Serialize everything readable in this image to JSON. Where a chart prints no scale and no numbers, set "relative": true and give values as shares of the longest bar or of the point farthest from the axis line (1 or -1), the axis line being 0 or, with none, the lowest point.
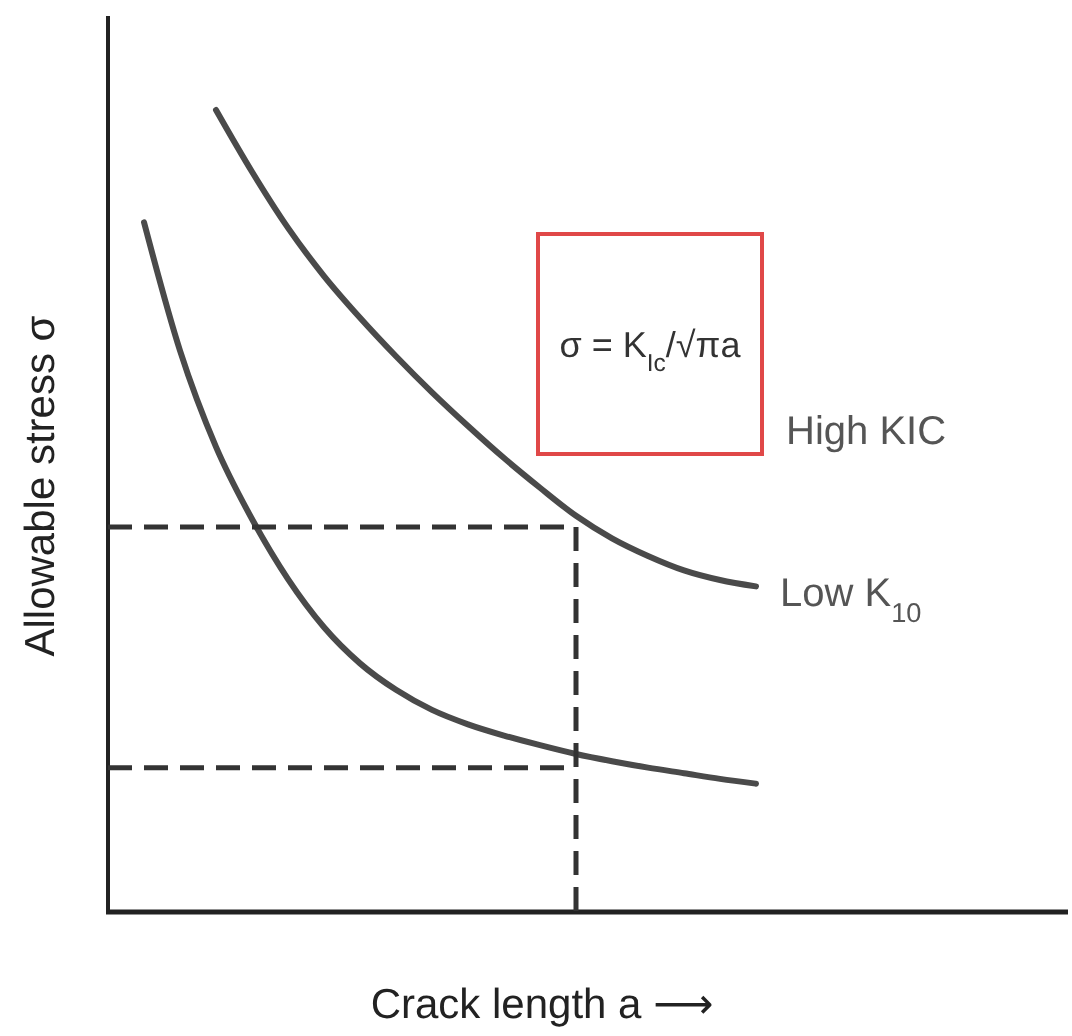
{
  "chart_data": {
    "type": "line",
    "xlabel": "Crack length a ⟶",
    "ylabel": "Allowable stress σ",
    "relative": true,
    "categories": [
      null,
      null,
      null,
      null,
      null,
      null,
      null,
      null,
      null,
      null,
      null,
      null,
      null,
      null,
      null,
      null,
      null,
      null,
      null,
      null,
      null,
      null,
      null,
      null,
      null,
      null,
      null
    ],
    "series": [
      {
        "color": "#4a4a4a",
        "values": [
          null,
          null,
          null,
          1,
          0.923,
          0.853,
          0.793,
          0.741,
          0.693,
          0.648,
          0.606,
          0.566,
          0.529,
          0.494,
          0.466,
          0.444,
          0.426,
          0.414,
          0.406,
          null,
          null,
          null,
          null,
          null,
          null,
          null,
          null
        ]
      },
      {
        "color": "#4a4a4a",
        "values": [
          null,
          0.86,
          0.7,
          0.58,
          0.49,
          0.415,
          0.355,
          0.31,
          0.277,
          0.252,
          0.234,
          0.22,
          0.208,
          0.197,
          0.188,
          0.18,
          0.173,
          0.166,
          0.16,
          null,
          null,
          null,
          null,
          null,
          null,
          null,
          null
        ]
      },
      {
        "type": "step",
        "color": "#333333",
        "line_style": "dashed",
        "values": [
          0.48,
          0.48,
          0.48,
          0.48,
          0.48,
          0.48,
          0.48,
          0.48,
          0.48,
          0.48,
          0.48,
          0.48,
          0.48,
          0,
          null,
          null,
          null,
          null,
          null,
          null,
          null,
          null,
          null,
          null,
          null,
          null,
          null
        ]
      },
      {
        "type": "line",
        "color": "#333333",
        "line_style": "dashed",
        "values": [
          0.18,
          0.18,
          0.18,
          0.18,
          0.18,
          0.18,
          0.18,
          0.18,
          0.18,
          0.18,
          0.18,
          0.18,
          0.18,
          0.18,
          null,
          null,
          null,
          null,
          null,
          null,
          null,
          null,
          null,
          null,
          null,
          null,
          null
        ]
      }
    ],
    "annotations": [
      "σ = K$_{Ic}$/√πa",
      "High KIC",
      "Low K$_{10}$"
    ]
  }
}
